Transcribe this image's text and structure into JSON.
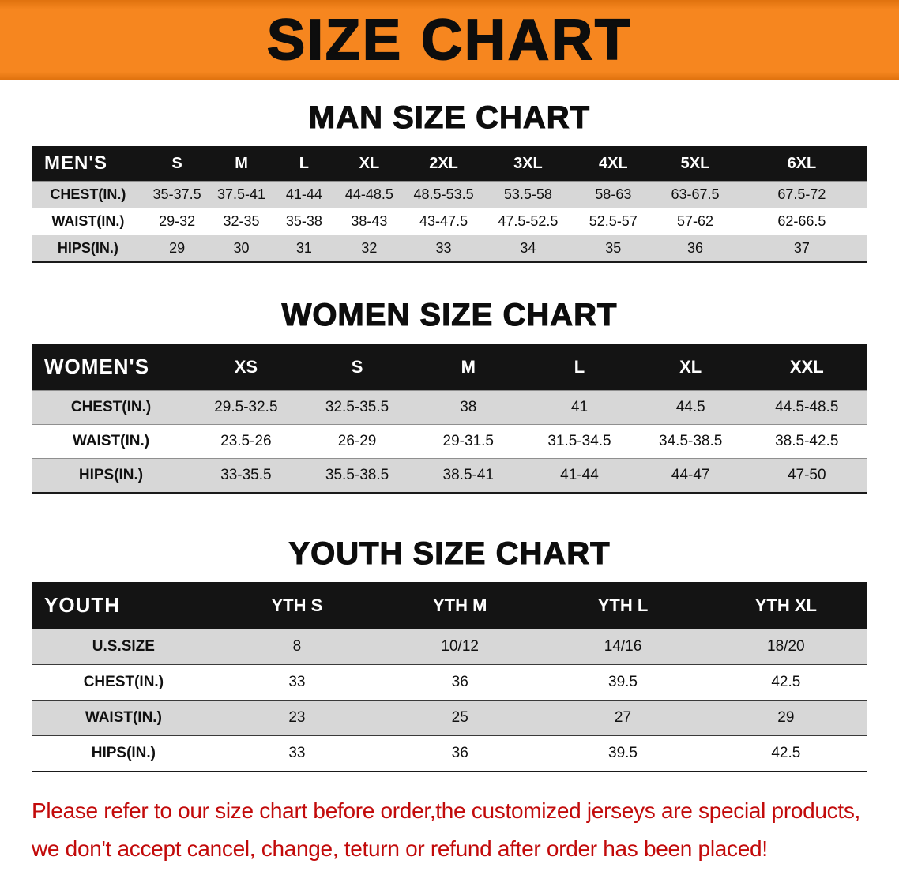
{
  "banner": {
    "title": "SIZE CHART"
  },
  "colors": {
    "banner_bg": "#F6861F",
    "banner_edge": "#E0720E",
    "table_header_bg": "#141414",
    "row_alt": "#D7D7D7",
    "notice_red": "#C20A0A"
  },
  "chart_data": [
    {
      "type": "table",
      "title": "MAN SIZE CHART",
      "header": [
        "MEN'S",
        "S",
        "M",
        "L",
        "XL",
        "2XL",
        "3XL",
        "4XL",
        "5XL",
        "6XL"
      ],
      "rows": [
        [
          "CHEST(IN.)",
          "35-37.5",
          "37.5-41",
          "41-44",
          "44-48.5",
          "48.5-53.5",
          "53.5-58",
          "58-63",
          "63-67.5",
          "67.5-72"
        ],
        [
          "WAIST(IN.)",
          "29-32",
          "32-35",
          "35-38",
          "38-43",
          "43-47.5",
          "47.5-52.5",
          "52.5-57",
          "57-62",
          "62-66.5"
        ],
        [
          "HIPS(IN.)",
          "29",
          "30",
          "31",
          "32",
          "33",
          "34",
          "35",
          "36",
          "37"
        ]
      ]
    },
    {
      "type": "table",
      "title": "WOMEN SIZE CHART",
      "header": [
        "WOMEN'S",
        "XS",
        "S",
        "M",
        "L",
        "XL",
        "XXL"
      ],
      "rows": [
        [
          "CHEST(IN.)",
          "29.5-32.5",
          "32.5-35.5",
          "38",
          "41",
          "44.5",
          "44.5-48.5"
        ],
        [
          "WAIST(IN.)",
          "23.5-26",
          "26-29",
          "29-31.5",
          "31.5-34.5",
          "34.5-38.5",
          "38.5-42.5"
        ],
        [
          "HIPS(IN.)",
          "33-35.5",
          "35.5-38.5",
          "38.5-41",
          "41-44",
          "44-47",
          "47-50"
        ]
      ]
    },
    {
      "type": "table",
      "title": "YOUTH SIZE CHART",
      "header": [
        "YOUTH",
        "YTH S",
        "YTH M",
        "YTH L",
        "YTH XL"
      ],
      "rows": [
        [
          "U.S.SIZE",
          "8",
          "10/12",
          "14/16",
          "18/20"
        ],
        [
          "CHEST(IN.)",
          "33",
          "36",
          "39.5",
          "42.5"
        ],
        [
          "WAIST(IN.)",
          "23",
          "25",
          "27",
          "29"
        ],
        [
          "HIPS(IN.)",
          "33",
          "36",
          "39.5",
          "42.5"
        ]
      ]
    }
  ],
  "footer": {
    "line1": "Please refer to our size chart before order,the customized jerseys are special products,",
    "line2": "we don't accept cancel, change, teturn or refund after order has been placed!"
  }
}
